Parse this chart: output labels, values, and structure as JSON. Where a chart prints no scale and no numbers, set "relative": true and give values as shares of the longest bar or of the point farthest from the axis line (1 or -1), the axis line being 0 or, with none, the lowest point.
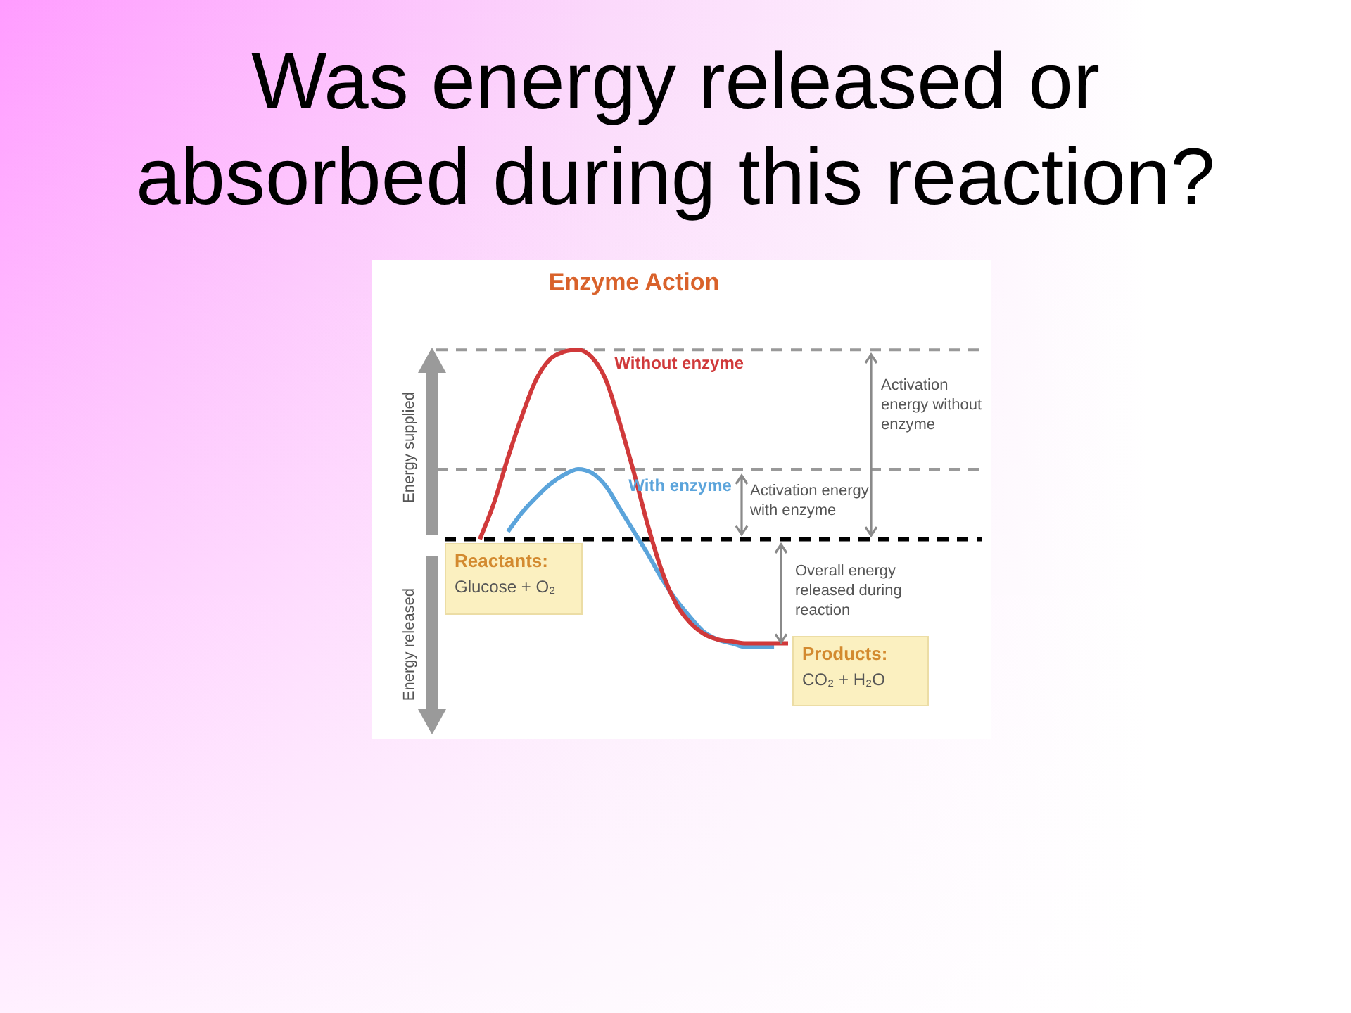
{
  "chart_data": {
    "type": "line",
    "title": "Was energy released or absorbed during this reaction?",
    "subtitle": "Enzyme Action",
    "relative": true,
    "legend": false,
    "marker": "none",
    "categories": [
      null,
      null,
      null,
      null,
      null,
      null,
      null,
      null,
      null,
      null,
      null,
      null,
      null,
      null,
      null,
      null,
      null,
      null,
      null,
      null,
      null,
      null,
      null
    ],
    "series": [
      {
        "name": "Without enzyme",
        "color": "#d0393a",
        "values": [
          0,
          0.19,
          0.43,
          0.65,
          0.84,
          0.95,
          0.99,
          1,
          0.96,
          0.84,
          0.61,
          0.35,
          0.07,
          -0.17,
          -0.34,
          -0.44,
          -0.5,
          -0.53,
          -0.54,
          -0.55,
          -0.55,
          -0.55,
          -0.55
        ]
      },
      {
        "name": "With enzyme",
        "color": "#5ba4db",
        "values": [
          null,
          null,
          0.04,
          0.14,
          0.22,
          0.29,
          0.34,
          0.37,
          0.35,
          0.28,
          0.16,
          0.04,
          -0.08,
          -0.21,
          -0.32,
          -0.41,
          -0.49,
          -0.53,
          -0.55,
          -0.57,
          -0.57,
          -0.57,
          null
        ]
      }
    ],
    "ref_lines": [
      {
        "axis": "y",
        "value": 1,
        "color": "#999999",
        "line_style": "dashed"
      },
      {
        "axis": "y",
        "value": 0.37,
        "color": "#999999",
        "line_style": "dashed"
      },
      {
        "axis": "y",
        "value": 0,
        "color": "#000000",
        "line_style": "dashed"
      }
    ],
    "annotations": [
      "Energy supplied",
      "Energy released",
      "Activation energy without enzyme",
      "Activation energy with enzyme",
      "Overall energy released during reaction",
      "Reactants:",
      "Glucose + O₂",
      "Products:",
      "CO₂ + H₂O"
    ]
  }
}
